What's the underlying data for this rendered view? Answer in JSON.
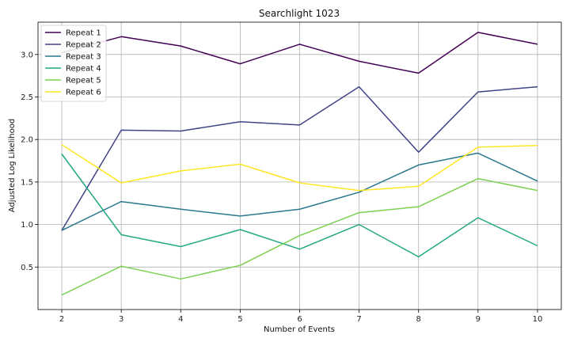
{
  "chart_data": {
    "type": "line",
    "title": "Searchlight 1023",
    "xlabel": "Number of Events",
    "ylabel": "Adjusted Log Likelihood",
    "x": [
      2,
      3,
      4,
      5,
      6,
      7,
      8,
      9,
      10
    ],
    "xlim": [
      1.6,
      10.4
    ],
    "ylim": [
      0.0,
      3.38
    ],
    "xticks": [
      "2",
      "3",
      "4",
      "5",
      "6",
      "7",
      "8",
      "9",
      "10"
    ],
    "yticks": [
      "0.5",
      "1.0",
      "1.5",
      "2.0",
      "2.5",
      "3.0"
    ],
    "grid": true,
    "legend_position": "upper-left",
    "series": [
      {
        "name": "Repeat 1",
        "color": "#440154",
        "values": [
          3.02,
          3.21,
          3.1,
          2.89,
          3.12,
          2.92,
          2.78,
          3.26,
          3.12
        ]
      },
      {
        "name": "Repeat 2",
        "color": "#414487",
        "values": [
          0.93,
          2.11,
          2.1,
          2.21,
          2.17,
          2.62,
          1.85,
          2.56,
          2.62
        ]
      },
      {
        "name": "Repeat 3",
        "color": "#2a788e",
        "values": [
          0.93,
          1.27,
          1.18,
          1.1,
          1.18,
          1.38,
          1.7,
          1.84,
          1.51
        ]
      },
      {
        "name": "Repeat 4",
        "color": "#22a884",
        "values": [
          1.83,
          0.88,
          0.74,
          0.94,
          0.71,
          1.0,
          0.62,
          1.08,
          0.75
        ]
      },
      {
        "name": "Repeat 5",
        "color": "#7ad151",
        "values": [
          0.17,
          0.51,
          0.36,
          0.52,
          0.87,
          1.14,
          1.21,
          1.54,
          1.4
        ]
      },
      {
        "name": "Repeat 6",
        "color": "#fde725",
        "values": [
          1.94,
          1.49,
          1.63,
          1.71,
          1.49,
          1.4,
          1.45,
          1.91,
          1.93
        ]
      }
    ]
  }
}
